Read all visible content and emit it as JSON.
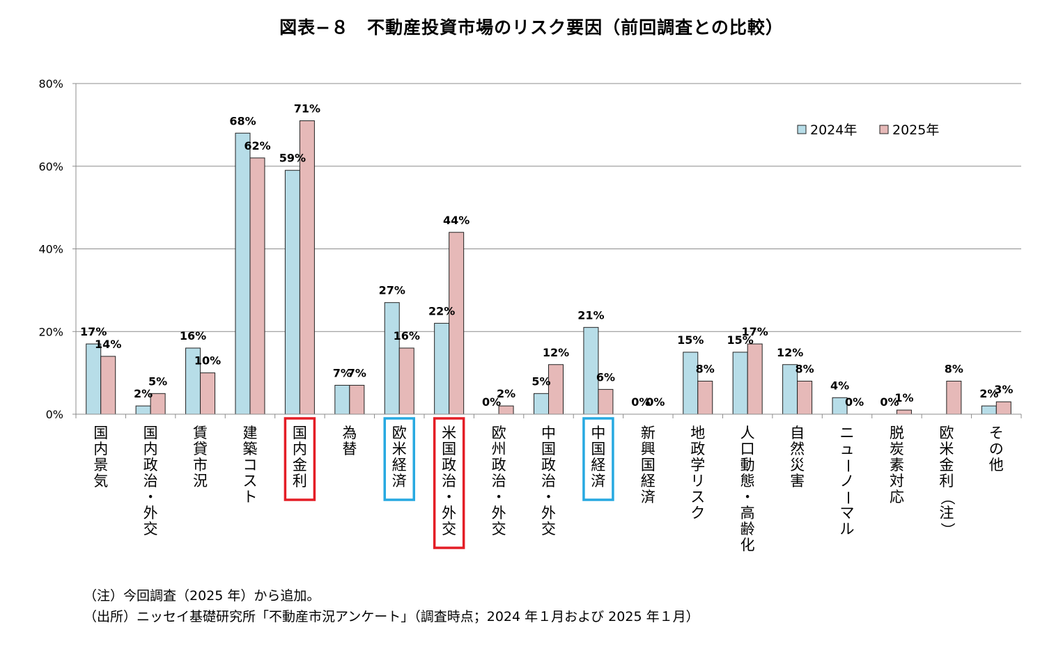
{
  "title": "図表−８　不動産投資市場のリスク要因（前回調査との比較）",
  "notes": [
    "（注）今回調査（2025 年）から追加。",
    "（出所）ニッセイ基礎研究所「不動産市況アンケート」（調査時点；2024 年１月および 2025 年１月）"
  ],
  "chart_data": {
    "type": "bar",
    "title": "図表−８　不動産投資市場のリスク要因（前回調査との比較）",
    "categories": [
      "国内景気",
      "国内政治・外交",
      "賃貸市況",
      "建築コスト",
      "国内金利",
      "為替",
      "欧米経済",
      "米国政治・外交",
      "欧州政治・外交",
      "中国政治・外交",
      "中国経済",
      "新興国経済",
      "地政学リスク",
      "人口動態・高齢化",
      "自然災害",
      "ニューノーマル",
      "脱炭素対応",
      "欧米金利（注）",
      "その他"
    ],
    "series": [
      {
        "name": "2024年",
        "color": "#b7dde8",
        "values": [
          17,
          2,
          16,
          68,
          59,
          7,
          27,
          22,
          0,
          5,
          21,
          0,
          15,
          15,
          12,
          4,
          0,
          null,
          2
        ],
        "labels": [
          "17%",
          "2%",
          "16%",
          "68%",
          "59%",
          "7%",
          "27%",
          "22%",
          "0%",
          "5%",
          "21%",
          "0%",
          "15%",
          "15%",
          "12%",
          "4%",
          "0%",
          "",
          "2%"
        ]
      },
      {
        "name": "2025年",
        "color": "#e6b9b8",
        "values": [
          14,
          5,
          10,
          62,
          71,
          7,
          16,
          44,
          2,
          12,
          6,
          0,
          8,
          17,
          8,
          0,
          1,
          8,
          3
        ],
        "labels": [
          "14%",
          "5%",
          "10%",
          "62%",
          "71%",
          "7%",
          "16%",
          "44%",
          "2%",
          "12%",
          "6%",
          "0%",
          "8%",
          "17%",
          "8%",
          "0%",
          "1%",
          "8%",
          "3%"
        ]
      }
    ],
    "ylim": [
      0,
      80
    ],
    "yticks": [
      "0%",
      "20%",
      "40%",
      "60%",
      "80%"
    ],
    "grid": true,
    "legend": "top-right",
    "highlight_red": [
      "国内金利",
      "米国政治・外交"
    ],
    "highlight_blue": [
      "欧米経済",
      "中国経済"
    ],
    "highlight_red_color": "#e41e26",
    "highlight_blue_color": "#27a9e1"
  }
}
